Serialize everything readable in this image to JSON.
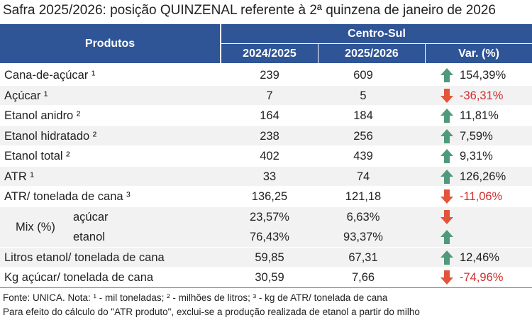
{
  "title": "Safra 2025/2026: posição QUINZENAL referente à 2ª quinzena de janeiro de 2026",
  "table": {
    "header": {
      "product": "Produtos",
      "region": "Centro-Sul",
      "columns": [
        "2024/2025",
        "2025/2026",
        "Var. (%)"
      ]
    },
    "rows": [
      {
        "label": "Cana-de-açúcar ¹",
        "cells": [
          "239",
          "609",
          "154,39%"
        ]
      },
      {
        "label": "Açúcar ¹",
        "cells": [
          "7",
          "5",
          "-36,31%"
        ]
      },
      {
        "label": "Etanol anidro ²",
        "cells": [
          "164",
          "184",
          "11,81%"
        ]
      },
      {
        "label": "Etanol hidratado ²",
        "cells": [
          "238",
          "256",
          "7,59%"
        ]
      },
      {
        "label": "Etanol total ²",
        "cells": [
          "402",
          "439",
          "9,31%"
        ]
      },
      {
        "label": "ATR ¹",
        "cells": [
          "33",
          "74",
          "126,26%"
        ]
      },
      {
        "label": "ATR/ tonelada de cana ³",
        "cells": [
          "136,25",
          "121,18",
          "-11,06%"
        ]
      },
      {
        "label": "Mix (%)",
        "subrows": [
          {
            "label": "açúcar",
            "cells": [
              "23,57%",
              "6,63%"
            ]
          },
          {
            "label": "etanol",
            "cells": [
              "76,43%",
              "93,37%"
            ]
          }
        ]
      },
      {
        "label": "Litros etanol/ tonelada de cana",
        "cells": [
          "59,85",
          "67,31",
          "12,46%"
        ]
      },
      {
        "label": "Kg açúcar/ tonelada de cana",
        "cells": [
          "30,59",
          "7,66",
          "-74,96%"
        ]
      }
    ]
  },
  "footnotes": [
    "Fonte: UNICA. Nota: ¹ - mil toneladas; ² - milhões de litros; ³ - kg de ATR/ tonelada de cana",
    "Para efeito do cálculo do \"ATR produto\", exclui-se a produção realizada de etanol a partir do milho"
  ]
}
